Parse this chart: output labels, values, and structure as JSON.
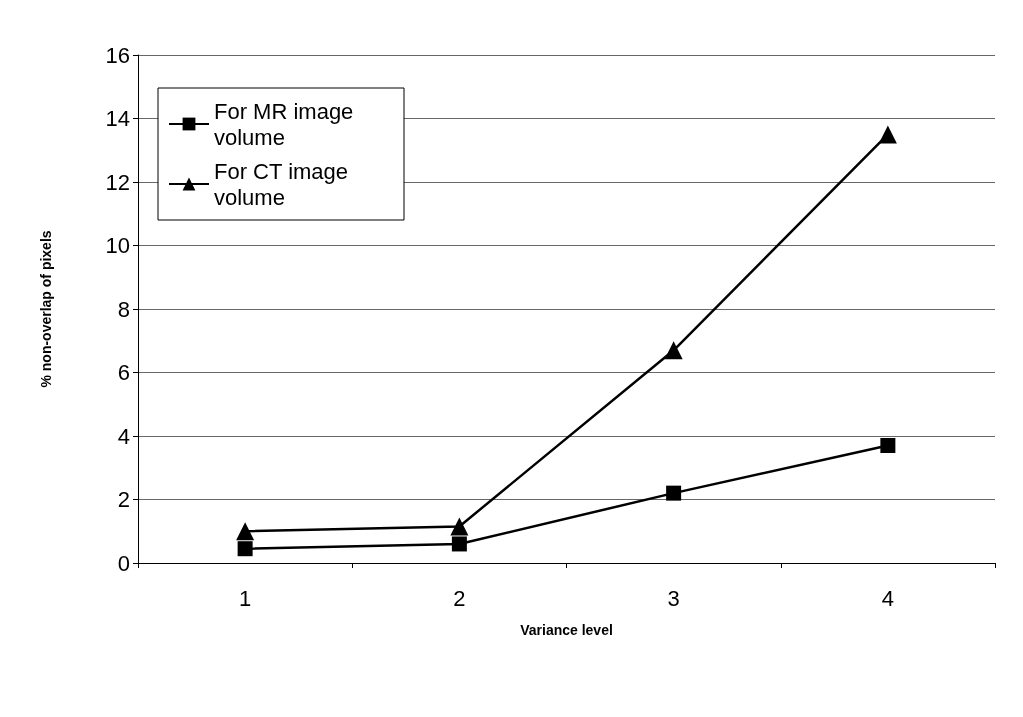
{
  "chart_data": {
    "type": "line",
    "xlabel": "Variance level",
    "ylabel": "% non-overlap of pixels",
    "categories": [
      "1",
      "2",
      "3",
      "4"
    ],
    "series": [
      {
        "name": "For MR image volume",
        "color": "#000000",
        "marker": "square",
        "values": [
          0.45,
          0.6,
          2.2,
          3.7
        ]
      },
      {
        "name": "For CT image volume",
        "color": "#000000",
        "marker": "triangle",
        "values": [
          1.0,
          1.15,
          6.7,
          13.5
        ]
      }
    ],
    "ylim": [
      0,
      16
    ],
    "yticks": [
      0,
      2,
      4,
      6,
      8,
      10,
      12,
      14,
      16
    ],
    "grid": "y",
    "legend": "top left",
    "line_style": "solid"
  }
}
